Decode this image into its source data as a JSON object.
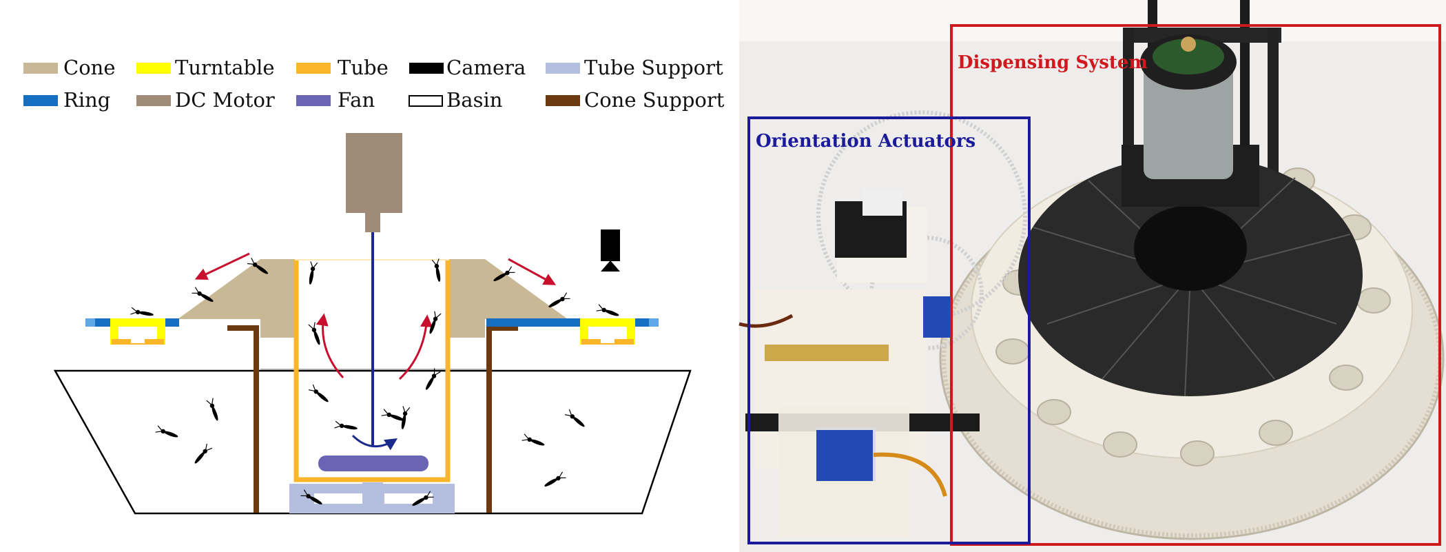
{
  "legend": {
    "items": [
      {
        "label": "Cone",
        "color": "#c9b895"
      },
      {
        "label": "Turntable",
        "color": "#ffff00"
      },
      {
        "label": "Tube",
        "color": "#fbb52a"
      },
      {
        "label": "Camera",
        "color": "#000000"
      },
      {
        "label": "Tube Support",
        "color": "#b4bedf"
      },
      {
        "label": "Ring",
        "color": "#1570c4"
      },
      {
        "label": "DC Motor",
        "color": "#a08a78"
      },
      {
        "label": "Fan",
        "color": "#6a64b5"
      },
      {
        "label": "Basin",
        "color": "#ffffff"
      },
      {
        "label": "Cone Support",
        "color": "#6b3a10"
      }
    ]
  },
  "photo": {
    "labels": {
      "dispensing": "Dispensing System",
      "orientation": "Orientation Actuators"
    },
    "colors": {
      "dispensing": "#d0191f",
      "orientation": "#1a1a9a"
    }
  }
}
